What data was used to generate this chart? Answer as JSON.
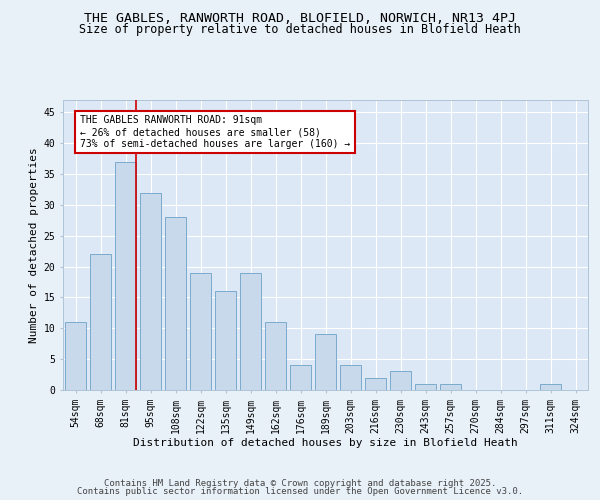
{
  "title_line1": "THE GABLES, RANWORTH ROAD, BLOFIELD, NORWICH, NR13 4PJ",
  "title_line2": "Size of property relative to detached houses in Blofield Heath",
  "xlabel": "Distribution of detached houses by size in Blofield Heath",
  "ylabel": "Number of detached properties",
  "categories": [
    "54sqm",
    "68sqm",
    "81sqm",
    "95sqm",
    "108sqm",
    "122sqm",
    "135sqm",
    "149sqm",
    "162sqm",
    "176sqm",
    "189sqm",
    "203sqm",
    "216sqm",
    "230sqm",
    "243sqm",
    "257sqm",
    "270sqm",
    "284sqm",
    "297sqm",
    "311sqm",
    "324sqm"
  ],
  "values": [
    11,
    22,
    37,
    32,
    28,
    19,
    16,
    19,
    11,
    4,
    9,
    4,
    2,
    3,
    1,
    1,
    0,
    0,
    0,
    1,
    0
  ],
  "bar_color": "#c9d9ec",
  "bar_edge_color": "#7aaacc",
  "ref_line_x": 2.425,
  "annotation_text": "THE GABLES RANWORTH ROAD: 91sqm\n← 26% of detached houses are smaller (58)\n73% of semi-detached houses are larger (160) →",
  "annotation_box_color": "#ffffff",
  "annotation_box_edge": "#cc0000",
  "ylim": [
    0,
    47
  ],
  "yticks": [
    0,
    5,
    10,
    15,
    20,
    25,
    30,
    35,
    40,
    45
  ],
  "background_color": "#e8f0f8",
  "plot_background": "#dce8f5",
  "grid_color": "#ffffff",
  "footer_line1": "Contains HM Land Registry data © Crown copyright and database right 2025.",
  "footer_line2": "Contains public sector information licensed under the Open Government Licence v3.0.",
  "ref_line_color": "#cc0000",
  "title_fontsize": 9.5,
  "subtitle_fontsize": 8.5,
  "tick_fontsize": 7,
  "label_fontsize": 8,
  "annotation_fontsize": 7,
  "footer_fontsize": 6.5
}
